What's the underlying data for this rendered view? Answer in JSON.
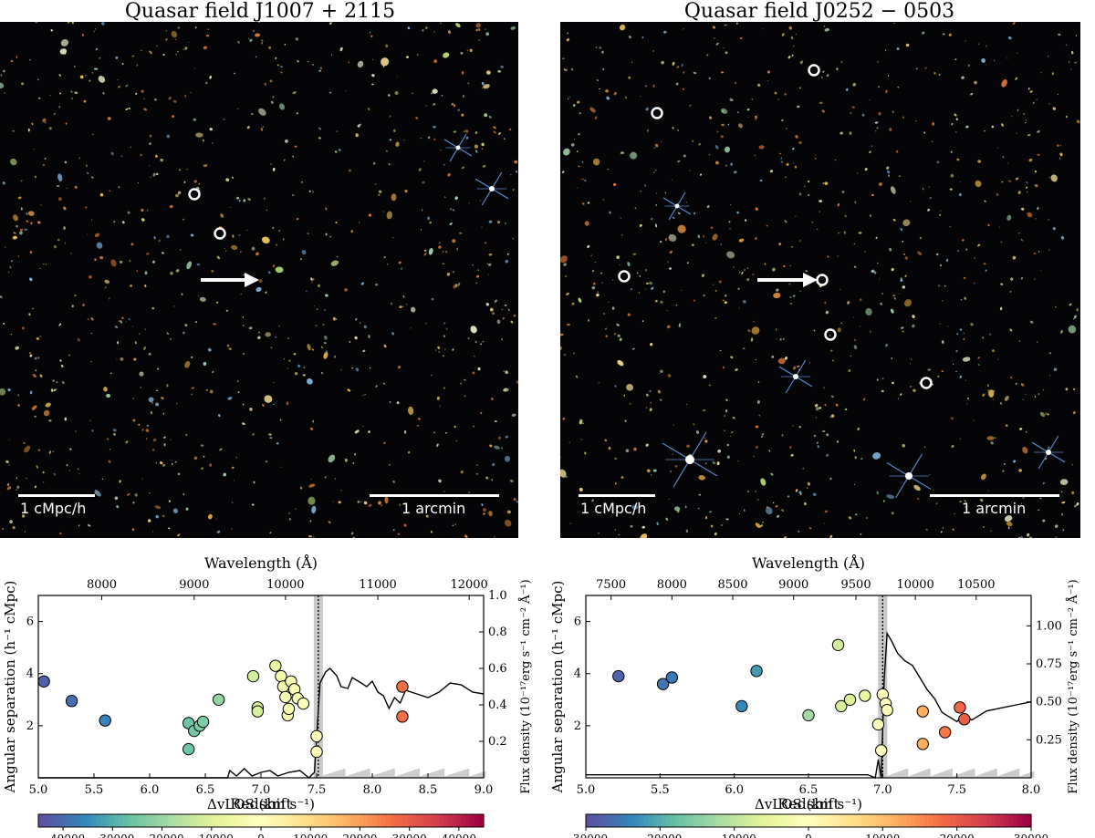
{
  "figure": {
    "left_title": "Quasar field J1007 + 2115",
    "right_title": "Quasar field J0252 − 0503",
    "scale_comoving": "1 cMpc/h",
    "scale_angular": "1 arcmin"
  },
  "chart_data": [
    {
      "type": "scatter",
      "panel": "J1007+2115",
      "xlabel": "Redshift",
      "ylabel": "Angular separation (h⁻¹ cMpc)",
      "y2label": "Flux density (10⁻¹⁷erg s⁻¹ cm⁻² Å⁻¹)",
      "toplabel": "Wavelength (Å)",
      "xlim": [
        5.0,
        9.0
      ],
      "ylim": [
        0,
        7
      ],
      "y2lim": [
        0,
        1.0
      ],
      "x_ticks": [
        "5.0",
        "5.5",
        "6.0",
        "6.5",
        "7.0",
        "7.5",
        "8.0",
        "8.5",
        "9.0"
      ],
      "y_ticks": [
        "2",
        "4",
        "6"
      ],
      "y2_ticks": [
        "0.2",
        "0.4",
        "0.6",
        "0.8",
        "1.0"
      ],
      "top_ticks": [
        [
          "8000",
          5.57
        ],
        [
          "9000",
          6.4
        ],
        [
          "10000",
          7.22
        ],
        [
          "11000",
          8.05
        ],
        [
          "12000",
          8.87
        ]
      ],
      "quasar_z": 7.515,
      "colorbar": {
        "label": "ΔvLOS (km s⁻¹)",
        "ticks": [
          "−40000",
          "−30000",
          "−20000",
          "−10000",
          "0",
          "10000",
          "20000",
          "30000",
          "40000"
        ],
        "range": [
          -45000,
          45000
        ]
      },
      "points": [
        [
          5.05,
          3.7,
          -42000
        ],
        [
          5.3,
          2.95,
          -40000
        ],
        [
          5.6,
          2.2,
          -37000
        ],
        [
          6.35,
          2.1,
          -26000
        ],
        [
          6.35,
          1.1,
          -26000
        ],
        [
          6.4,
          1.8,
          -25000
        ],
        [
          6.45,
          2.0,
          -24000
        ],
        [
          6.48,
          2.15,
          -24000
        ],
        [
          6.62,
          3.0,
          -21000
        ],
        [
          6.93,
          3.9,
          -12000
        ],
        [
          6.97,
          2.7,
          -11000
        ],
        [
          6.97,
          2.55,
          -11000
        ],
        [
          7.13,
          4.3,
          -6000
        ],
        [
          7.18,
          3.9,
          -5000
        ],
        [
          7.2,
          3.5,
          -4000
        ],
        [
          7.22,
          3.1,
          -3000
        ],
        [
          7.24,
          2.4,
          -3000
        ],
        [
          7.25,
          2.65,
          -3000
        ],
        [
          7.27,
          3.7,
          -2500
        ],
        [
          7.3,
          3.4,
          -2000
        ],
        [
          7.33,
          3.05,
          -1500
        ],
        [
          7.38,
          2.85,
          -1000
        ],
        [
          7.5,
          1.0,
          0
        ],
        [
          7.5,
          1.6,
          0
        ],
        [
          8.27,
          3.5,
          27000
        ],
        [
          8.27,
          2.35,
          27000
        ]
      ],
      "spectrum": [
        [
          5.0,
          0.0
        ],
        [
          6.7,
          0.0
        ],
        [
          6.72,
          0.04
        ],
        [
          6.78,
          0.01
        ],
        [
          6.85,
          0.05
        ],
        [
          6.92,
          0.01
        ],
        [
          7.0,
          0.03
        ],
        [
          7.08,
          0.04
        ],
        [
          7.15,
          0.01
        ],
        [
          7.25,
          0.03
        ],
        [
          7.35,
          0.04
        ],
        [
          7.43,
          0.0
        ],
        [
          7.48,
          0.03
        ],
        [
          7.5,
          0.22
        ],
        [
          7.53,
          0.52
        ],
        [
          7.58,
          0.58
        ],
        [
          7.62,
          0.6
        ],
        [
          7.68,
          0.56
        ],
        [
          7.72,
          0.5
        ],
        [
          7.78,
          0.49
        ],
        [
          7.82,
          0.55
        ],
        [
          7.9,
          0.52
        ],
        [
          7.95,
          0.5
        ],
        [
          8.0,
          0.53
        ],
        [
          8.05,
          0.47
        ],
        [
          8.1,
          0.45
        ],
        [
          8.15,
          0.38
        ],
        [
          8.2,
          0.44
        ],
        [
          8.25,
          0.41
        ],
        [
          8.3,
          0.48
        ],
        [
          8.4,
          0.46
        ],
        [
          8.5,
          0.44
        ],
        [
          8.6,
          0.47
        ],
        [
          8.7,
          0.52
        ],
        [
          8.8,
          0.51
        ],
        [
          8.9,
          0.47
        ],
        [
          9.0,
          0.46
        ]
      ]
    },
    {
      "type": "scatter",
      "panel": "J0252-0503",
      "xlabel": "Redshift",
      "ylabel": "Angular separation (h⁻¹ cMpc)",
      "y2label": "Flux density (10⁻¹⁷erg s⁻¹ cm⁻² Å⁻¹)",
      "toplabel": "Wavelength (Å)",
      "xlim": [
        5.0,
        8.0
      ],
      "ylim": [
        0,
        7
      ],
      "y2lim": [
        0,
        1.2
      ],
      "x_ticks": [
        "5.0",
        "5.5",
        "6.0",
        "6.5",
        "7.0",
        "7.5",
        "8.0"
      ],
      "y_ticks": [
        "2",
        "4",
        "6"
      ],
      "y2_ticks": [
        "0.25",
        "0.50",
        "0.75",
        "1.00"
      ],
      "top_ticks": [
        [
          "7500",
          5.17
        ],
        [
          "8000",
          5.58
        ],
        [
          "8500",
          5.99
        ],
        [
          "9000",
          6.4
        ],
        [
          "9500",
          6.82
        ],
        [
          "10000",
          7.22
        ],
        [
          "10500",
          7.63
        ]
      ],
      "quasar_z": 7.0,
      "colorbar": {
        "label": "ΔvLOS (km s⁻¹)",
        "ticks": [
          "−30000",
          "−20000",
          "−10000",
          "0",
          "10000",
          "20000",
          "30000"
        ],
        "range": [
          -30000,
          30000
        ]
      },
      "points": [
        [
          5.22,
          3.9,
          -28000
        ],
        [
          5.52,
          3.6,
          -26000
        ],
        [
          5.58,
          3.85,
          -25500
        ],
        [
          6.05,
          2.75,
          -24000
        ],
        [
          6.15,
          4.1,
          -22000
        ],
        [
          6.5,
          2.4,
          -13000
        ],
        [
          6.7,
          5.1,
          -8000
        ],
        [
          6.72,
          2.75,
          -7500
        ],
        [
          6.78,
          3.0,
          -7000
        ],
        [
          6.88,
          3.15,
          -5000
        ],
        [
          6.97,
          2.05,
          -1000
        ],
        [
          6.99,
          1.05,
          0
        ],
        [
          7.0,
          3.2,
          0
        ],
        [
          7.02,
          2.85,
          500
        ],
        [
          7.03,
          2.6,
          800
        ],
        [
          7.27,
          2.55,
          12000
        ],
        [
          7.27,
          1.3,
          12000
        ],
        [
          7.42,
          1.75,
          17000
        ],
        [
          7.52,
          2.7,
          19000
        ],
        [
          7.55,
          2.25,
          20000
        ]
      ],
      "spectrum": [
        [
          5.0,
          0.02
        ],
        [
          6.9,
          0.02
        ],
        [
          6.95,
          0.0
        ],
        [
          6.97,
          0.12
        ],
        [
          6.99,
          0.0
        ],
        [
          7.01,
          0.65
        ],
        [
          7.03,
          0.95
        ],
        [
          7.06,
          0.9
        ],
        [
          7.1,
          0.82
        ],
        [
          7.15,
          0.77
        ],
        [
          7.2,
          0.74
        ],
        [
          7.25,
          0.66
        ],
        [
          7.3,
          0.58
        ],
        [
          7.35,
          0.52
        ],
        [
          7.4,
          0.43
        ],
        [
          7.45,
          0.4
        ],
        [
          7.5,
          0.37
        ],
        [
          7.55,
          0.42
        ],
        [
          7.6,
          0.38
        ],
        [
          7.7,
          0.44
        ],
        [
          7.8,
          0.46
        ],
        [
          7.9,
          0.48
        ],
        [
          8.0,
          0.5
        ]
      ]
    }
  ]
}
